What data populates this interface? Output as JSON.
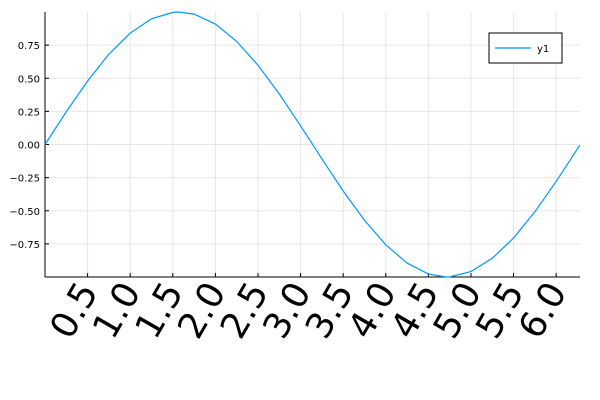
{
  "chart_data": {
    "type": "line",
    "title": "",
    "xlabel": "",
    "ylabel": "",
    "xlim": [
      0,
      6.28
    ],
    "ylim": [
      -1,
      1
    ],
    "grid": true,
    "legend_position": "top-right",
    "x_ticks": [
      0.5,
      1.0,
      1.5,
      2.0,
      2.5,
      3.0,
      3.5,
      4.0,
      4.5,
      5.0,
      5.5,
      6.0
    ],
    "x_tick_labels": [
      "0.5",
      "1.0",
      "1.5",
      "2.0",
      "2.5",
      "3.0",
      "3.5",
      "4.0",
      "4.5",
      "5.0",
      "5.5",
      "6.0"
    ],
    "y_ticks": [
      0.75,
      0.5,
      0.25,
      0.0,
      -0.25,
      -0.5,
      -0.75
    ],
    "y_tick_labels": [
      "0.75",
      "0.50",
      "0.25",
      "0.00",
      "−0.25",
      "−0.50",
      "−0.75"
    ],
    "series": [
      {
        "name": "y1",
        "color": "#009AF9",
        "x": [
          0.0,
          0.25,
          0.5,
          0.75,
          1.0,
          1.25,
          1.5,
          1.5708,
          1.75,
          2.0,
          2.25,
          2.5,
          2.75,
          3.0,
          3.25,
          3.5,
          3.75,
          4.0,
          4.25,
          4.5,
          4.7124,
          4.75,
          5.0,
          5.25,
          5.5,
          5.75,
          6.0,
          6.28
        ],
        "y": [
          0.0,
          0.247,
          0.479,
          0.682,
          0.841,
          0.949,
          0.997,
          1.0,
          0.984,
          0.909,
          0.778,
          0.598,
          0.382,
          0.141,
          -0.108,
          -0.351,
          -0.572,
          -0.757,
          -0.895,
          -0.978,
          -1.0,
          -0.999,
          -0.959,
          -0.859,
          -0.706,
          -0.508,
          -0.279,
          -0.003
        ]
      }
    ]
  }
}
